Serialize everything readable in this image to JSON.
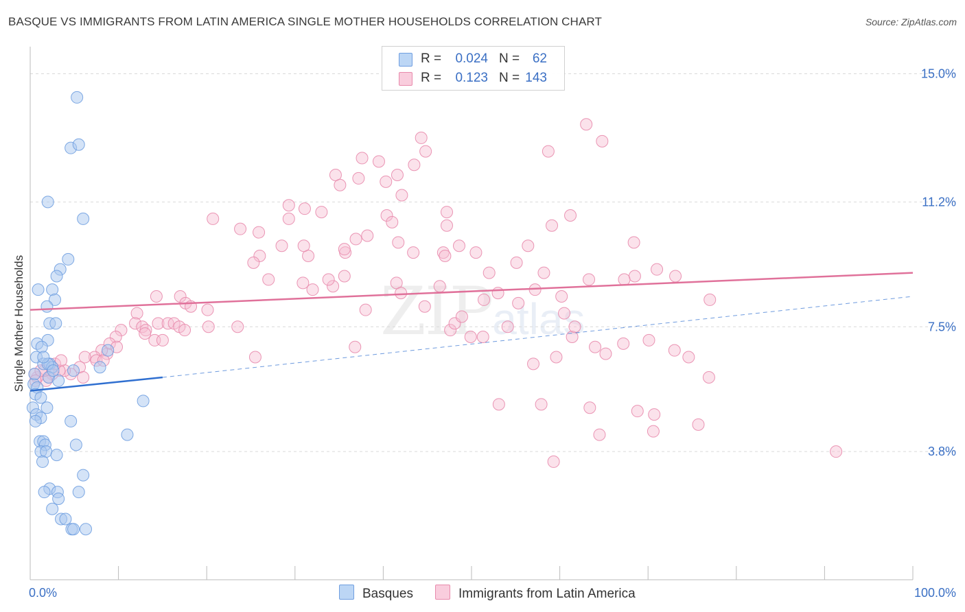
{
  "title": "BASQUE VS IMMIGRANTS FROM LATIN AMERICA SINGLE MOTHER HOUSEHOLDS CORRELATION CHART",
  "source": "Source: ZipAtlas.com",
  "watermark": {
    "big": "ZIP",
    "small": "atlas"
  },
  "legend_top": {
    "rows": [
      {
        "r_label": "R =",
        "r_value": "0.024",
        "n_label": "N =",
        "n_value": "62"
      },
      {
        "r_label": "R =",
        "r_value": "0.123",
        "n_label": "N =",
        "n_value": "143"
      }
    ]
  },
  "legend_bottom": {
    "items": [
      "Basques",
      "Immigrants from Latin America"
    ]
  },
  "colors": {
    "blue_fill": "#a9c8f0",
    "blue_stroke": "#6f9ee0",
    "blue_line": "#2f6fd0",
    "pink_fill": "#f7bfd2",
    "pink_stroke": "#e88aac",
    "pink_line": "#e0719a",
    "tick_label": "#3a6fc4",
    "grid": "#d9d9d9"
  },
  "chart_data": {
    "type": "scatter",
    "title": "BASQUE VS IMMIGRANTS FROM LATIN AMERICA SINGLE MOTHER HOUSEHOLDS CORRELATION CHART",
    "xlabel": "",
    "ylabel": "Single Mother Households",
    "xlim": [
      0,
      100
    ],
    "ylim": [
      0,
      15.6
    ],
    "x_tick_labels": [
      {
        "value": 0,
        "label": "0.0%"
      },
      {
        "value": 100,
        "label": "100.0%"
      }
    ],
    "y_tick_labels": [
      {
        "value": 3.8,
        "label": "3.8%"
      },
      {
        "value": 7.5,
        "label": "7.5%"
      },
      {
        "value": 11.2,
        "label": "11.2%"
      },
      {
        "value": 15.0,
        "label": "15.0%"
      }
    ],
    "x_minor_ticks": [
      0,
      10,
      20,
      30,
      40,
      50,
      60,
      70,
      80,
      90,
      100
    ],
    "grid": true,
    "series": [
      {
        "name": "Basques",
        "color": "#a9c8f0",
        "trend": {
          "x": [
            0,
            15
          ],
          "y": [
            5.6,
            6.0
          ],
          "dashed_extension_to": [
            100,
            8.4
          ]
        },
        "points": [
          [
            5.3,
            14.3
          ],
          [
            4.6,
            12.8
          ],
          [
            5.5,
            12.9
          ],
          [
            2.0,
            11.2
          ],
          [
            6.0,
            10.7
          ],
          [
            4.3,
            9.5
          ],
          [
            3.4,
            9.2
          ],
          [
            3.0,
            9.0
          ],
          [
            0.9,
            8.6
          ],
          [
            2.5,
            8.6
          ],
          [
            2.8,
            8.3
          ],
          [
            1.9,
            8.1
          ],
          [
            2.2,
            7.6
          ],
          [
            2.9,
            7.6
          ],
          [
            2.0,
            7.1
          ],
          [
            0.8,
            7.0
          ],
          [
            1.3,
            6.9
          ],
          [
            0.7,
            6.6
          ],
          [
            1.5,
            6.4
          ],
          [
            2.2,
            6.4
          ],
          [
            2.5,
            6.3
          ],
          [
            8.8,
            6.8
          ],
          [
            7.9,
            6.3
          ],
          [
            2.1,
            6.0
          ],
          [
            4.9,
            6.2
          ],
          [
            0.4,
            5.8
          ],
          [
            0.8,
            5.7
          ],
          [
            0.6,
            5.5
          ],
          [
            1.2,
            5.4
          ],
          [
            0.3,
            5.1
          ],
          [
            0.7,
            4.9
          ],
          [
            1.9,
            5.1
          ],
          [
            1.2,
            4.8
          ],
          [
            12.8,
            5.3
          ],
          [
            0.6,
            4.7
          ],
          [
            4.6,
            4.7
          ],
          [
            11.0,
            4.3
          ],
          [
            1.1,
            4.1
          ],
          [
            1.5,
            4.1
          ],
          [
            5.2,
            4.0
          ],
          [
            1.7,
            4.0
          ],
          [
            1.2,
            3.8
          ],
          [
            1.8,
            3.8
          ],
          [
            3.0,
            3.7
          ],
          [
            1.4,
            3.5
          ],
          [
            6.0,
            3.1
          ],
          [
            2.2,
            2.7
          ],
          [
            1.6,
            2.6
          ],
          [
            3.1,
            2.6
          ],
          [
            5.5,
            2.6
          ],
          [
            3.2,
            2.4
          ],
          [
            2.5,
            2.1
          ],
          [
            3.5,
            1.8
          ],
          [
            4.0,
            1.8
          ],
          [
            4.7,
            1.5
          ],
          [
            4.9,
            1.5
          ],
          [
            6.3,
            1.5
          ],
          [
            2.0,
            6.4
          ],
          [
            2.6,
            6.2
          ],
          [
            1.5,
            6.6
          ],
          [
            0.5,
            6.1
          ],
          [
            3.2,
            5.9
          ]
        ]
      },
      {
        "name": "Immigrants from Latin America",
        "color": "#f7bfd2",
        "trend": {
          "x": [
            0,
            100
          ],
          "y": [
            8.0,
            9.1
          ]
        },
        "points": [
          [
            63.0,
            13.5
          ],
          [
            64.8,
            13.0
          ],
          [
            44.3,
            13.1
          ],
          [
            44.8,
            12.7
          ],
          [
            58.7,
            12.7
          ],
          [
            37.6,
            12.5
          ],
          [
            39.5,
            12.4
          ],
          [
            43.5,
            12.3
          ],
          [
            34.6,
            12.0
          ],
          [
            37.2,
            11.9
          ],
          [
            40.3,
            11.8
          ],
          [
            41.6,
            12.0
          ],
          [
            35.1,
            11.7
          ],
          [
            42.1,
            11.4
          ],
          [
            29.3,
            11.1
          ],
          [
            31.1,
            11.0
          ],
          [
            33.0,
            10.9
          ],
          [
            47.2,
            10.9
          ],
          [
            40.4,
            10.8
          ],
          [
            41.0,
            10.6
          ],
          [
            20.7,
            10.7
          ],
          [
            29.3,
            10.7
          ],
          [
            23.8,
            10.4
          ],
          [
            25.9,
            10.3
          ],
          [
            38.2,
            10.2
          ],
          [
            36.9,
            10.1
          ],
          [
            41.7,
            10.0
          ],
          [
            48.6,
            9.9
          ],
          [
            56.4,
            9.9
          ],
          [
            46.8,
            9.7
          ],
          [
            47.0,
            9.6
          ],
          [
            35.7,
            9.7
          ],
          [
            59.1,
            10.5
          ],
          [
            61.2,
            10.8
          ],
          [
            43.4,
            9.7
          ],
          [
            35.6,
            9.8
          ],
          [
            28.5,
            9.9
          ],
          [
            26.0,
            9.6
          ],
          [
            31.5,
            9.6
          ],
          [
            31.0,
            9.9
          ],
          [
            25.3,
            9.4
          ],
          [
            55.1,
            9.4
          ],
          [
            50.5,
            9.7
          ],
          [
            52.0,
            9.1
          ],
          [
            58.2,
            9.1
          ],
          [
            63.3,
            8.9
          ],
          [
            68.5,
            9.0
          ],
          [
            67.3,
            8.9
          ],
          [
            34.3,
            8.7
          ],
          [
            32.0,
            8.6
          ],
          [
            30.9,
            8.8
          ],
          [
            27.0,
            8.9
          ],
          [
            33.8,
            8.9
          ],
          [
            35.6,
            9.0
          ],
          [
            41.5,
            8.8
          ],
          [
            42.0,
            8.5
          ],
          [
            46.4,
            8.7
          ],
          [
            38.0,
            8.0
          ],
          [
            51.4,
            8.3
          ],
          [
            53.0,
            8.5
          ],
          [
            55.3,
            8.2
          ],
          [
            57.2,
            8.6
          ],
          [
            60.2,
            8.4
          ],
          [
            60.5,
            7.9
          ],
          [
            71.0,
            9.2
          ],
          [
            73.1,
            9.0
          ],
          [
            77.0,
            8.3
          ],
          [
            14.3,
            8.4
          ],
          [
            17.0,
            8.4
          ],
          [
            17.6,
            8.2
          ],
          [
            18.2,
            8.1
          ],
          [
            20.1,
            8.0
          ],
          [
            12.1,
            7.9
          ],
          [
            14.5,
            7.6
          ],
          [
            15.6,
            7.6
          ],
          [
            16.3,
            7.6
          ],
          [
            16.9,
            7.5
          ],
          [
            17.5,
            7.4
          ],
          [
            20.2,
            7.5
          ],
          [
            23.5,
            7.5
          ],
          [
            11.9,
            7.6
          ],
          [
            12.7,
            7.5
          ],
          [
            13.1,
            7.4
          ],
          [
            10.3,
            7.4
          ],
          [
            9.7,
            7.2
          ],
          [
            13.0,
            7.3
          ],
          [
            14.1,
            7.1
          ],
          [
            15.0,
            7.1
          ],
          [
            9.0,
            7.0
          ],
          [
            8.7,
            6.7
          ],
          [
            9.8,
            6.9
          ],
          [
            8.1,
            6.8
          ],
          [
            7.3,
            6.6
          ],
          [
            7.5,
            6.5
          ],
          [
            8.3,
            6.5
          ],
          [
            6.2,
            6.6
          ],
          [
            5.6,
            6.3
          ],
          [
            4.6,
            6.1
          ],
          [
            3.9,
            6.2
          ],
          [
            3.3,
            6.2
          ],
          [
            2.5,
            6.1
          ],
          [
            2.1,
            6.0
          ],
          [
            1.8,
            5.9
          ],
          [
            1.6,
            6.2
          ],
          [
            0.8,
            6.0
          ],
          [
            0.5,
            6.1
          ],
          [
            0.6,
            5.9
          ],
          [
            1.2,
            6.2
          ],
          [
            2.8,
            6.4
          ],
          [
            3.5,
            6.5
          ],
          [
            6.0,
            6.0
          ],
          [
            25.5,
            6.6
          ],
          [
            36.8,
            6.9
          ],
          [
            49.9,
            7.2
          ],
          [
            51.3,
            7.2
          ],
          [
            57.0,
            6.4
          ],
          [
            59.6,
            6.6
          ],
          [
            67.2,
            7.0
          ],
          [
            70.1,
            7.1
          ],
          [
            73.0,
            6.8
          ],
          [
            74.6,
            6.6
          ],
          [
            76.9,
            6.0
          ],
          [
            57.9,
            5.2
          ],
          [
            53.1,
            5.2
          ],
          [
            63.4,
            5.1
          ],
          [
            64.5,
            4.3
          ],
          [
            68.8,
            5.0
          ],
          [
            70.6,
            4.4
          ],
          [
            70.7,
            4.9
          ],
          [
            75.7,
            4.6
          ],
          [
            59.3,
            3.5
          ],
          [
            91.3,
            3.8
          ],
          [
            47.6,
            7.4
          ],
          [
            54.1,
            7.5
          ],
          [
            48.1,
            7.6
          ],
          [
            44.7,
            8.1
          ],
          [
            48.9,
            7.8
          ],
          [
            61.4,
            7.2
          ],
          [
            61.7,
            7.5
          ],
          [
            64.0,
            6.9
          ],
          [
            65.2,
            6.7
          ],
          [
            47.2,
            10.5
          ],
          [
            68.4,
            10.0
          ]
        ]
      }
    ]
  }
}
